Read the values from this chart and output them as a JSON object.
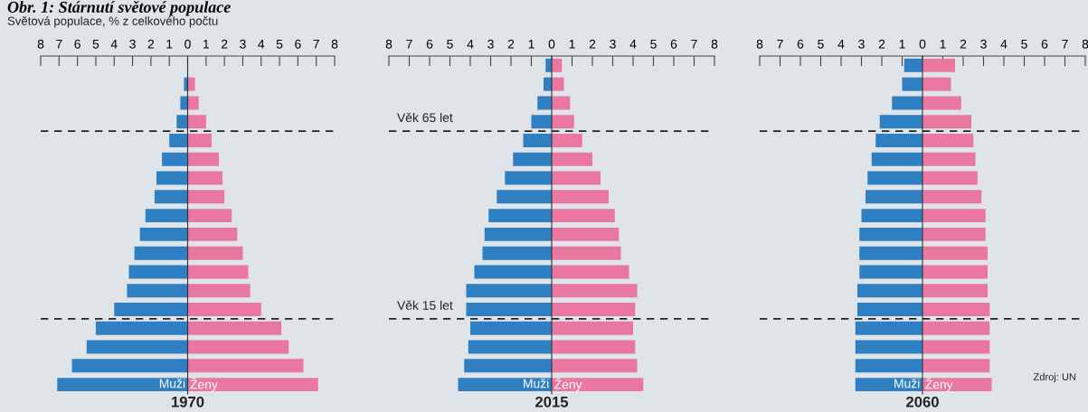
{
  "chart_data": [
    {
      "type": "bar",
      "orientation": "horizontal",
      "stacked": true,
      "title": "1970",
      "annotations": [
        "Obr. 1: Stárnutí světové populace",
        "Světová populace, % z celkového počtu"
      ],
      "categories": [
        null,
        null,
        null,
        null,
        null,
        null,
        null,
        null,
        null,
        null,
        null,
        null,
        null,
        null,
        null,
        null,
        null,
        null
      ],
      "series": [
        {
          "name": "Muži",
          "color": "#2f80c2",
          "values": [
            null,
            -0.2,
            -0.4,
            -0.6,
            -1.0,
            -1.4,
            -1.7,
            -1.8,
            -2.3,
            -2.6,
            -2.9,
            -3.2,
            -3.3,
            -4.0,
            -5.0,
            -5.5,
            -6.3,
            -7.1
          ]
        },
        {
          "name": "Ženy",
          "color": "#e9779f",
          "values": [
            null,
            0.4,
            0.6,
            1.0,
            1.3,
            1.7,
            1.9,
            2.0,
            2.4,
            2.7,
            3.0,
            3.3,
            3.4,
            4.0,
            5.1,
            5.5,
            6.3,
            7.1
          ]
        }
      ],
      "xlim": [
        -8,
        8
      ],
      "xticks": [
        {
          "value": -8,
          "label": "8"
        },
        {
          "value": -7,
          "label": "7"
        },
        {
          "value": -6,
          "label": "6"
        },
        {
          "value": -5,
          "label": "5"
        },
        {
          "value": -4,
          "label": "4"
        },
        {
          "value": -3,
          "label": "3"
        },
        {
          "value": -2,
          "label": "2"
        },
        {
          "value": -1,
          "label": "1"
        },
        0,
        1,
        2,
        3,
        4,
        5,
        6,
        7,
        8
      ],
      "tick_labels": "x",
      "legend": false
    },
    {
      "type": "bar",
      "orientation": "horizontal",
      "stacked": true,
      "title": "2015",
      "annotations": [
        "Věk 65 let",
        "Věk 15 let"
      ],
      "categories": [
        null,
        null,
        null,
        null,
        null,
        null,
        null,
        null,
        null,
        null,
        null,
        null,
        null,
        null,
        null,
        null,
        null,
        null
      ],
      "series": [
        {
          "name": "Muži",
          "color": "#2f80c2",
          "values": [
            -0.3,
            -0.4,
            -0.7,
            -1.0,
            -1.4,
            -1.9,
            -2.3,
            -2.7,
            -3.1,
            -3.3,
            -3.4,
            -3.8,
            -4.2,
            -4.2,
            -4.0,
            -4.1,
            -4.3,
            -4.6
          ]
        },
        {
          "name": "Ženy",
          "color": "#e9779f",
          "values": [
            0.5,
            0.6,
            0.9,
            1.1,
            1.5,
            2.0,
            2.4,
            2.8,
            3.1,
            3.3,
            3.4,
            3.8,
            4.2,
            4.1,
            4.0,
            4.1,
            4.2,
            4.5
          ]
        }
      ],
      "xlim": [
        -8,
        8
      ],
      "xticks": [
        {
          "value": -8,
          "label": "8"
        },
        {
          "value": -7,
          "label": "7"
        },
        {
          "value": -6,
          "label": "6"
        },
        {
          "value": -5,
          "label": "5"
        },
        {
          "value": -4,
          "label": "4"
        },
        {
          "value": -3,
          "label": "3"
        },
        {
          "value": -2,
          "label": "2"
        },
        {
          "value": -1,
          "label": "1"
        },
        0,
        1,
        2,
        3,
        4,
        5,
        6,
        7,
        8
      ],
      "tick_labels": "x",
      "legend": false
    },
    {
      "type": "bar",
      "orientation": "horizontal",
      "stacked": true,
      "title": "2060",
      "annotations": [
        "Zdroj: UN"
      ],
      "categories": [
        null,
        null,
        null,
        null,
        null,
        null,
        null,
        null,
        null,
        null,
        null,
        null,
        null,
        null,
        null,
        null,
        null,
        null
      ],
      "series": [
        {
          "name": "Muži",
          "color": "#2f80c2",
          "values": [
            -0.9,
            -1.0,
            -1.5,
            -2.1,
            -2.3,
            -2.5,
            -2.7,
            -2.8,
            -3.0,
            -3.1,
            -3.1,
            -3.1,
            -3.2,
            -3.2,
            -3.3,
            -3.3,
            -3.3,
            -3.3
          ]
        },
        {
          "name": "Ženy",
          "color": "#e9779f",
          "values": [
            1.6,
            1.4,
            1.9,
            2.4,
            2.5,
            2.6,
            2.7,
            2.9,
            3.1,
            3.1,
            3.2,
            3.2,
            3.2,
            3.3,
            3.3,
            3.3,
            3.3,
            3.4
          ]
        }
      ],
      "xlim": [
        -8,
        8
      ],
      "xticks": [
        {
          "value": -8,
          "label": "8"
        },
        {
          "value": -7,
          "label": "7"
        },
        {
          "value": -6,
          "label": "6"
        },
        {
          "value": -5,
          "label": "5"
        },
        {
          "value": -4,
          "label": "4"
        },
        {
          "value": -3,
          "label": "3"
        },
        {
          "value": -2,
          "label": "2"
        },
        {
          "value": -1,
          "label": "1"
        },
        0,
        1,
        2,
        3,
        4,
        5,
        6,
        7,
        8
      ],
      "tick_labels": "x",
      "legend": false
    }
  ]
}
